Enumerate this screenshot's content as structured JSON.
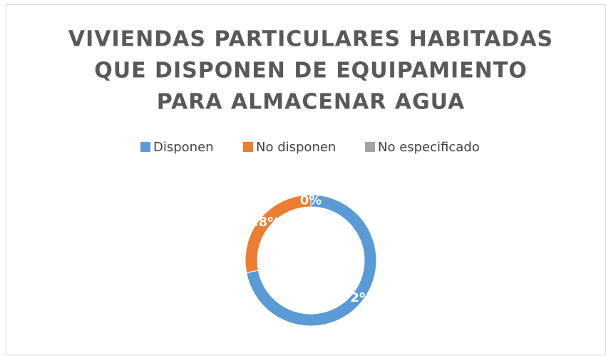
{
  "chart_data": {
    "type": "donut",
    "title": [
      "VIVIENDAS PARTICULARES HABITADAS",
      "QUE DISPONEN DE EQUIPAMIENTO",
      "PARA ALMACENAR AGUA"
    ],
    "categories": [
      "Disponen",
      "No disponen",
      "No especificado"
    ],
    "values": [
      72,
      28,
      0
    ],
    "value_labels": [
      "72%",
      "28%",
      "0%"
    ],
    "colors": [
      "#5b9bd5",
      "#ed7d31",
      "#a5a5a5"
    ],
    "legend": "top"
  }
}
